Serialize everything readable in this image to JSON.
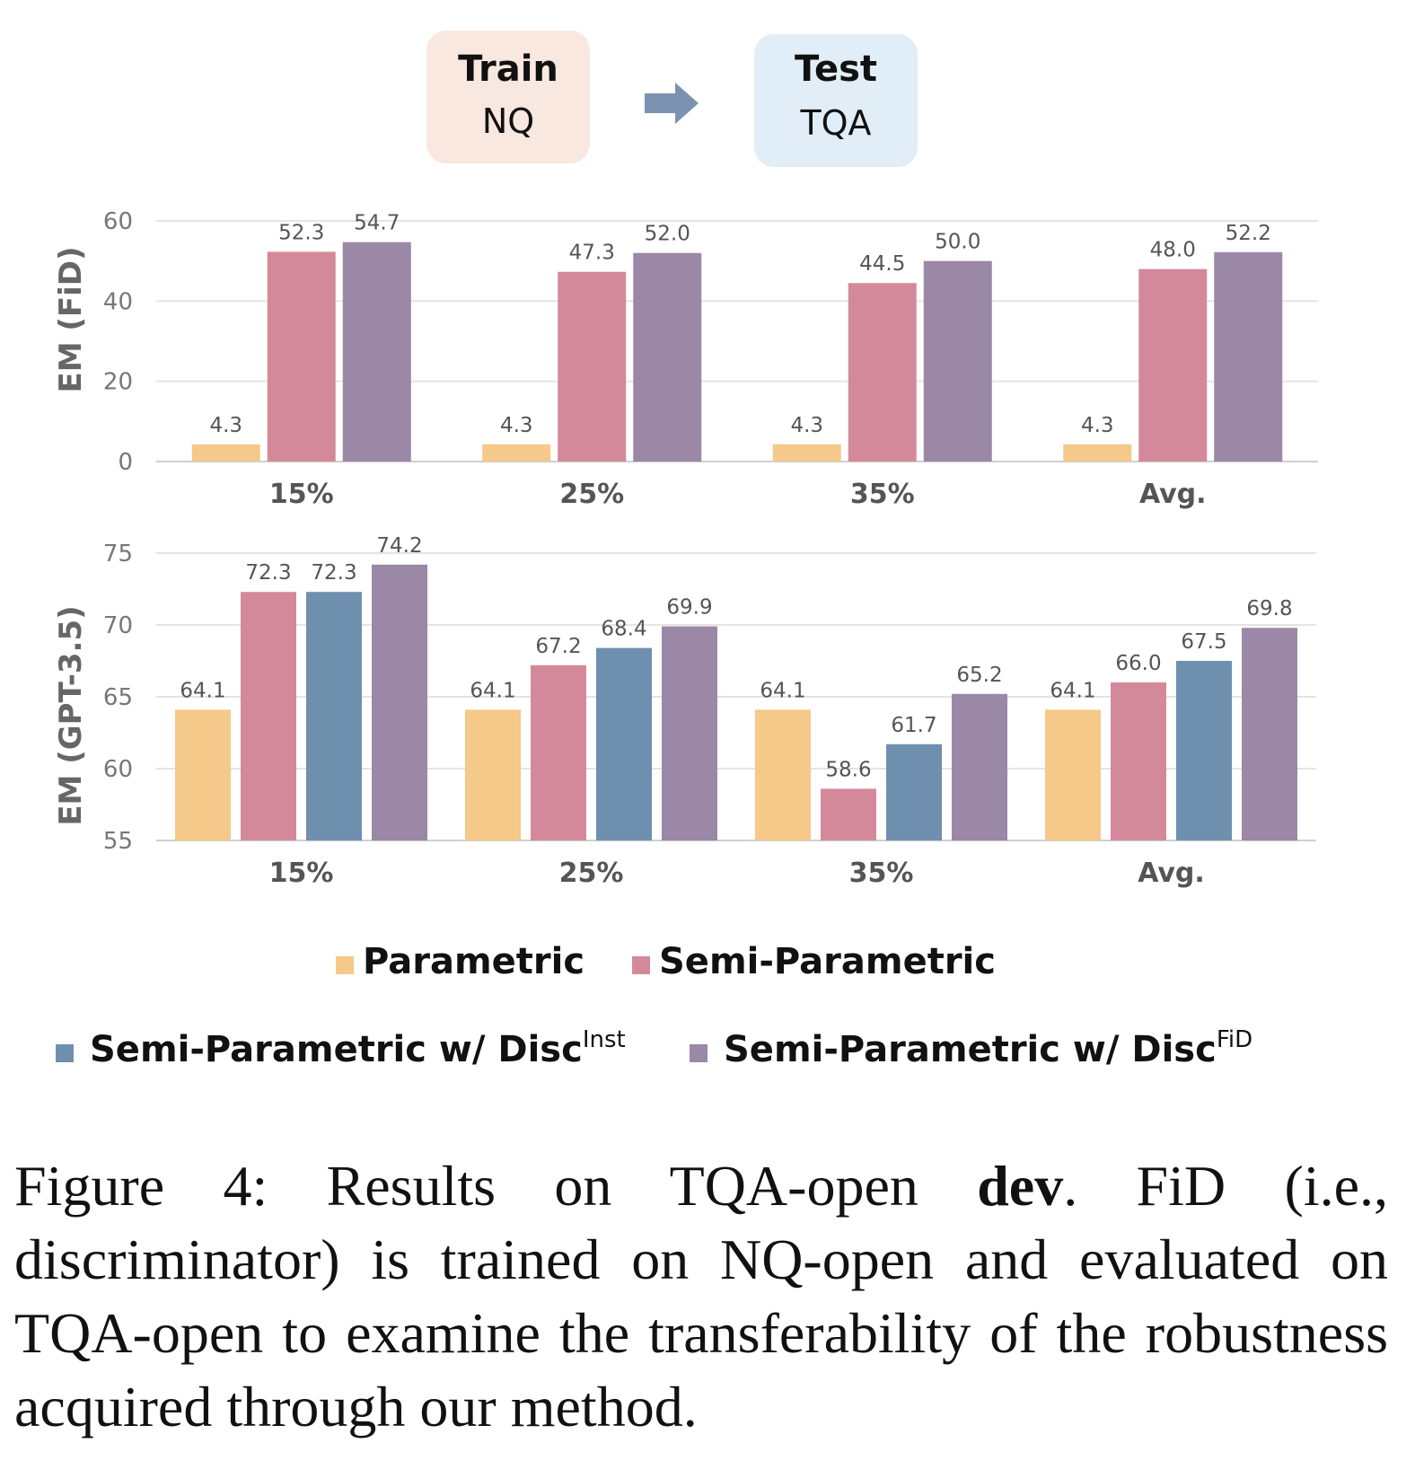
{
  "flow": {
    "train_label": "Train",
    "train_dataset": "NQ",
    "test_label": "Test",
    "test_dataset": "TQA",
    "train_color": "#f8e8df",
    "test_color": "#e1eef7",
    "arrow_color": "#7b93b0"
  },
  "legend": {
    "items": [
      {
        "label": "Parametric",
        "sup": "",
        "color": "#f4c989"
      },
      {
        "label": "Semi-Parametric",
        "sup": "",
        "color": "#d4899b"
      },
      {
        "label": "Semi-Parametric w/ Disc",
        "sup": "Inst",
        "color": "#6f8faf"
      },
      {
        "label": "Semi-Parametric w/ Disc",
        "sup": "FiD",
        "color": "#9b87a6"
      }
    ]
  },
  "chart_data": [
    {
      "type": "bar",
      "ylabel": "EM (FiD)",
      "categories": [
        "15%",
        "25%",
        "35%",
        "Avg."
      ],
      "ylim": [
        0,
        60
      ],
      "yticks": [
        0,
        20,
        40,
        60
      ],
      "grid": true,
      "series": [
        {
          "name": "Parametric",
          "color": "#f4c989",
          "values": [
            4.3,
            4.3,
            4.3,
            4.3
          ],
          "labels": [
            "4.3",
            "4.3",
            "4.3",
            "4.3"
          ]
        },
        {
          "name": "Semi-Parametric",
          "color": "#d4899b",
          "values": [
            52.3,
            47.3,
            44.5,
            48.0
          ],
          "labels": [
            "52.3",
            "47.3",
            "44.5",
            "48.0"
          ]
        },
        {
          "name": "Semi-Parametric w/ Disc FiD",
          "color": "#9b87a6",
          "values": [
            54.7,
            52.0,
            50.0,
            52.2
          ],
          "labels": [
            "54.7",
            "52.0",
            "50.0",
            "52.2"
          ]
        }
      ]
    },
    {
      "type": "bar",
      "ylabel": "EM (GPT-3.5)",
      "categories": [
        "15%",
        "25%",
        "35%",
        "Avg."
      ],
      "ylim": [
        55,
        75
      ],
      "yticks": [
        55,
        60,
        65,
        70,
        75
      ],
      "grid": true,
      "series": [
        {
          "name": "Parametric",
          "color": "#f4c989",
          "values": [
            64.1,
            64.1,
            64.1,
            64.1
          ],
          "labels": [
            "64.1",
            "64.1",
            "64.1",
            "64.1"
          ]
        },
        {
          "name": "Semi-Parametric",
          "color": "#d4899b",
          "values": [
            72.3,
            67.2,
            58.6,
            66.0
          ],
          "labels": [
            "72.3",
            "67.2",
            "58.6",
            "66.0"
          ]
        },
        {
          "name": "Semi-Parametric w/ Disc Inst",
          "color": "#6f8faf",
          "values": [
            72.3,
            68.4,
            61.7,
            67.5
          ],
          "labels": [
            "72.3",
            "68.4",
            "61.7",
            "67.5"
          ]
        },
        {
          "name": "Semi-Parametric w/ Disc FiD",
          "color": "#9b87a6",
          "values": [
            74.2,
            69.9,
            65.2,
            69.8
          ],
          "labels": [
            "74.2",
            "69.9",
            "65.2",
            "69.8"
          ]
        }
      ]
    }
  ],
  "caption": {
    "prefix": "Figure 4: Results on TQA-open ",
    "bold": "dev",
    "suffix": ". FiD (i.e., discriminator) is trained on NQ-open and evaluated on TQA-open to examine the transferability of the robustness acquired through our method."
  }
}
